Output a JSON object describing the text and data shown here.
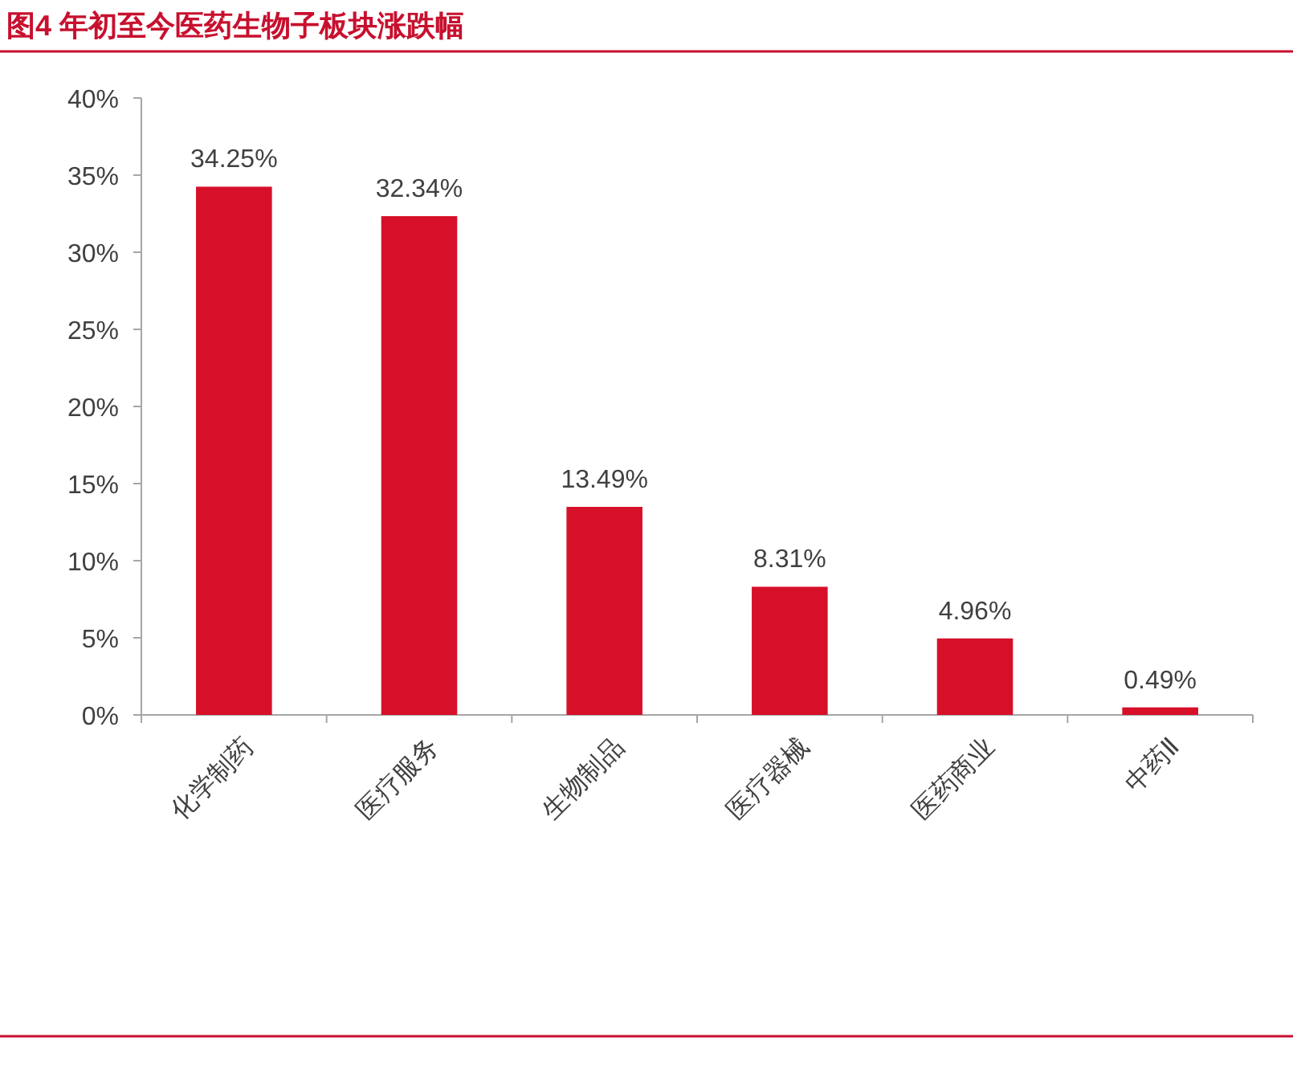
{
  "chart_data": {
    "type": "bar",
    "title": "图4  年初至今医药生物子板块涨跌幅",
    "categories": [
      "化学制药",
      "医疗服务",
      "生物制品",
      "医疗器械",
      "医药商业",
      "中药Ⅱ"
    ],
    "values": [
      34.25,
      32.34,
      13.49,
      8.31,
      4.96,
      0.49
    ],
    "value_labels": [
      "34.25%",
      "32.34%",
      "13.49%",
      "8.31%",
      "4.96%",
      "0.49%"
    ],
    "color": "#d7102a",
    "ylim": [
      0,
      40
    ],
    "yticks": [
      {
        "value": 0,
        "label": "0%"
      },
      {
        "value": 5,
        "label": "5%"
      },
      {
        "value": 10,
        "label": "10%"
      },
      {
        "value": 15,
        "label": "15%"
      },
      {
        "value": 20,
        "label": "20%"
      },
      {
        "value": 25,
        "label": "25%"
      },
      {
        "value": 30,
        "label": "30%"
      },
      {
        "value": 35,
        "label": "35%"
      },
      {
        "value": 40,
        "label": "40%"
      }
    ],
    "grid": false
  }
}
